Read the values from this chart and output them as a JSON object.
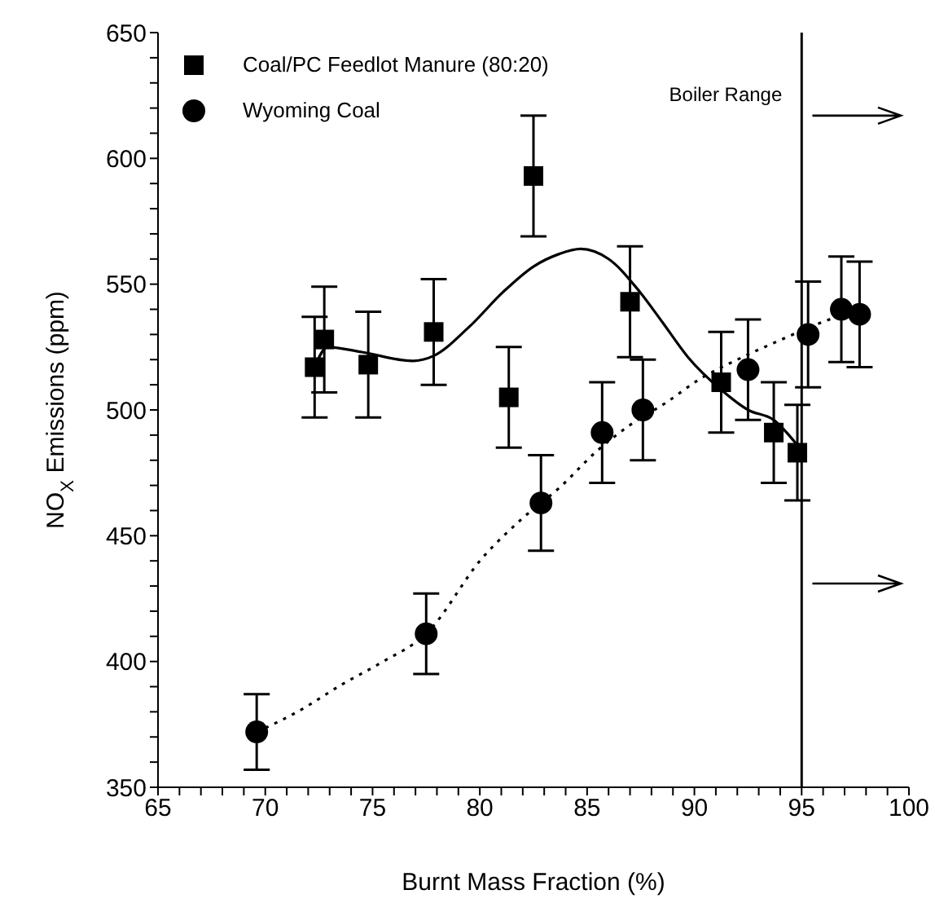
{
  "chart_data": {
    "type": "scatter",
    "xlabel": "Burnt Mass Fraction (%)",
    "ylabel": "NO$_{X}$ Emissions (ppm)",
    "xlim": [
      65,
      100
    ],
    "ylim": [
      350,
      650
    ],
    "xticks": [
      65,
      {
        "value": 66,
        "label": null
      },
      {
        "value": 67,
        "label": null
      },
      {
        "value": 68,
        "label": null
      },
      {
        "value": 69,
        "label": null
      },
      70,
      {
        "value": 71,
        "label": null
      },
      {
        "value": 72,
        "label": null
      },
      {
        "value": 73,
        "label": null
      },
      {
        "value": 74,
        "label": null
      },
      75,
      {
        "value": 76,
        "label": null
      },
      {
        "value": 77,
        "label": null
      },
      {
        "value": 78,
        "label": null
      },
      {
        "value": 79,
        "label": null
      },
      80,
      {
        "value": 81,
        "label": null
      },
      {
        "value": 82,
        "label": null
      },
      {
        "value": 83,
        "label": null
      },
      {
        "value": 84,
        "label": null
      },
      85,
      {
        "value": 86,
        "label": null
      },
      {
        "value": 87,
        "label": null
      },
      {
        "value": 88,
        "label": null
      },
      {
        "value": 89,
        "label": null
      },
      90,
      {
        "value": 91,
        "label": null
      },
      {
        "value": 92,
        "label": null
      },
      {
        "value": 93,
        "label": null
      },
      {
        "value": 94,
        "label": null
      },
      95,
      {
        "value": 96,
        "label": null
      },
      {
        "value": 97,
        "label": null
      },
      {
        "value": 98,
        "label": null
      },
      {
        "value": 99,
        "label": null
      },
      100
    ],
    "yticks": [
      350,
      {
        "value": 360,
        "label": null
      },
      {
        "value": 370,
        "label": null
      },
      {
        "value": 380,
        "label": null
      },
      {
        "value": 390,
        "label": null
      },
      400,
      {
        "value": 410,
        "label": null
      },
      {
        "value": 420,
        "label": null
      },
      {
        "value": 430,
        "label": null
      },
      {
        "value": 440,
        "label": null
      },
      450,
      {
        "value": 460,
        "label": null
      },
      {
        "value": 470,
        "label": null
      },
      {
        "value": 480,
        "label": null
      },
      {
        "value": 490,
        "label": null
      },
      500,
      {
        "value": 510,
        "label": null
      },
      {
        "value": 520,
        "label": null
      },
      {
        "value": 530,
        "label": null
      },
      {
        "value": 540,
        "label": null
      },
      550,
      {
        "value": 560,
        "label": null
      },
      {
        "value": 570,
        "label": null
      },
      {
        "value": 580,
        "label": null
      },
      {
        "value": 590,
        "label": null
      },
      600,
      {
        "value": 610,
        "label": null
      },
      {
        "value": 620,
        "label": null
      },
      {
        "value": 630,
        "label": null
      },
      {
        "value": 640,
        "label": null
      },
      650
    ],
    "grid": false,
    "legend": "top left",
    "ref_lines": [
      {
        "axis": "x",
        "value": 95,
        "label": "Boiler Range",
        "color": "#000000"
      }
    ],
    "series": [
      {
        "name": "Coal/PC Feedlot Manure (80:20)",
        "marker": "square",
        "color": "#000000",
        "x": [
          72.3,
          72.75,
          74.8,
          77.85,
          81.35,
          82.5,
          87.0,
          91.25,
          93.7,
          94.8
        ],
        "values": [
          517,
          528,
          518,
          531,
          505,
          593,
          543,
          511,
          491,
          483
        ],
        "errors": [
          20,
          21,
          21,
          21,
          20,
          24,
          22,
          20,
          20,
          19
        ]
      },
      {
        "name": "Wyoming Coal",
        "marker": "circle",
        "color": "#000000",
        "x": [
          69.6,
          77.5,
          82.85,
          85.7,
          87.6,
          92.5,
          95.3,
          96.85,
          97.7
        ],
        "values": [
          372,
          411,
          463,
          491,
          500,
          516,
          530,
          540,
          538
        ],
        "errors": [
          15,
          16,
          19,
          20,
          20,
          20,
          21,
          21,
          21
        ]
      },
      {
        "type": "line",
        "line_style": "solid",
        "color": "#000000",
        "x": [
          72.3,
          72.9,
          74.5,
          76.85,
          77.85,
          79.5,
          81.1,
          82.5,
          83.7,
          84.7,
          86.0,
          87.45,
          88.5,
          89.7,
          91.25,
          92.5,
          93.7,
          94.8
        ],
        "values": [
          517,
          525,
          523,
          519.5,
          521.5,
          533,
          547,
          557,
          562,
          564,
          560,
          547,
          535,
          521,
          508,
          500,
          496,
          486
        ]
      },
      {
        "type": "line",
        "line_style": "dotted",
        "color": "#000000",
        "x": [
          69.6,
          71.5,
          73.6,
          75.5,
          77.5,
          80.1,
          82,
          83.7,
          85.5,
          87,
          88.7,
          90.2,
          92,
          93.8,
          96.3,
          97.3
        ],
        "values": [
          372,
          380,
          391,
          400,
          411,
          441,
          457,
          469,
          484,
          494,
          503,
          512,
          520,
          527,
          536,
          539
        ]
      }
    ]
  }
}
